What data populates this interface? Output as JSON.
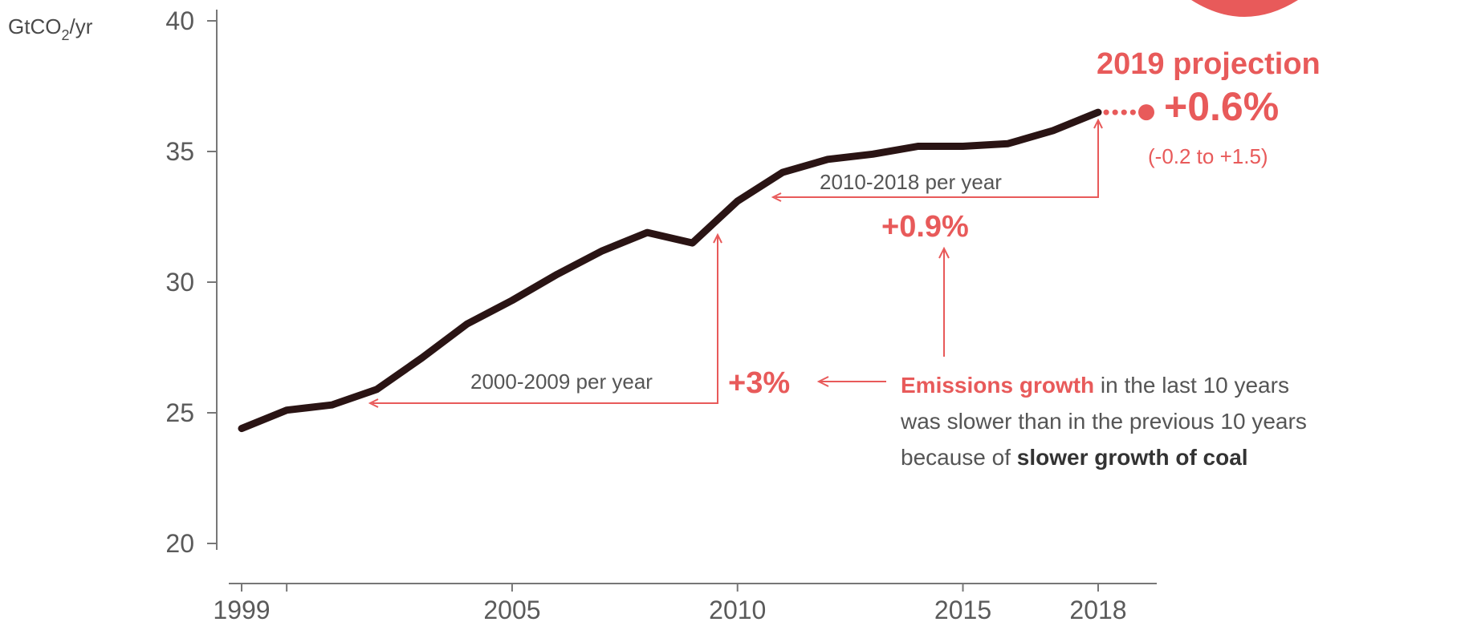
{
  "chart_data": {
    "type": "line",
    "ylabel_unit": "GtCO₂/yr",
    "y_ticks": [
      20,
      25,
      30,
      35,
      40
    ],
    "y_tick_labels": [
      "20",
      "25",
      "30",
      "35",
      "40"
    ],
    "x_ticks": [
      1999,
      2005,
      2010,
      2015,
      2018
    ],
    "x_tick_labels": [
      "1999",
      "2005",
      "2010",
      "2015",
      "2018"
    ],
    "ylim": [
      20,
      40
    ],
    "xlim": [
      1999,
      2018
    ],
    "series": [
      {
        "x": [
          1999,
          2000,
          2001,
          2002,
          2003,
          2004,
          2005,
          2006,
          2007,
          2008,
          2009,
          2010,
          2011,
          2012,
          2013,
          2014,
          2015,
          2016,
          2017,
          2018
        ],
        "values": [
          24.4,
          25.1,
          25.3,
          25.9,
          27.1,
          28.4,
          29.3,
          30.3,
          31.2,
          31.9,
          31.5,
          33.1,
          34.2,
          34.7,
          34.9,
          35.2,
          35.2,
          35.3,
          35.8,
          36.5
        ]
      }
    ],
    "projection": {
      "year": 2019,
      "value": 36.7,
      "title": "2019 projection",
      "change": "+0.6%",
      "range": "(-0.2 to +1.5)"
    },
    "annotations": {
      "period_2010": {
        "label": "2010-2018 per year",
        "value": "+0.9%"
      },
      "period_2000": {
        "label": "2000-2009 per year",
        "value": "+3%"
      },
      "note": {
        "line1_red": "Emissions growth",
        "line1_rest": " in the last 10 years",
        "line2": "was slower than in the previous 10 years",
        "line3_lead": "because of ",
        "line3_bold": "slower growth of coal"
      }
    },
    "colors": {
      "line": "#2a1414",
      "accent": "#e85a5a",
      "axis": "#777777"
    }
  }
}
